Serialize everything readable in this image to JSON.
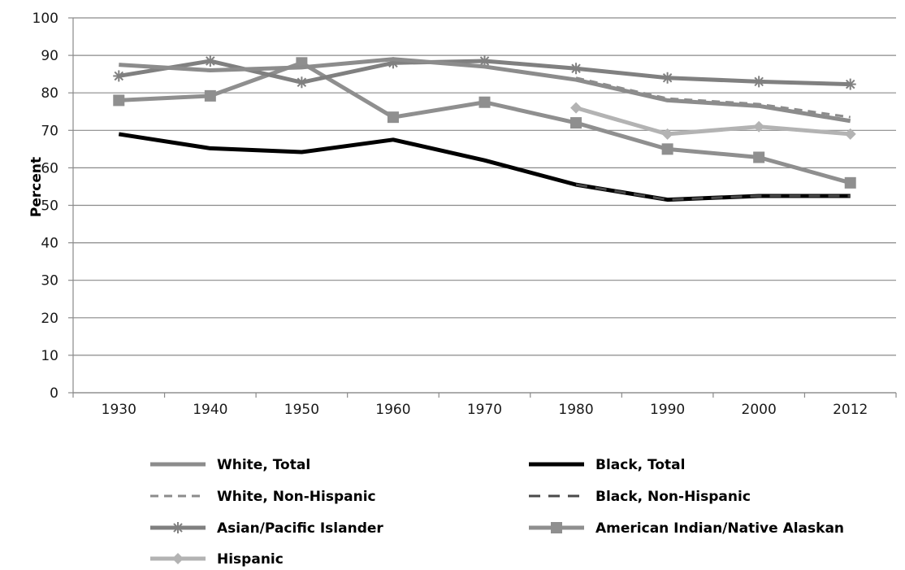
{
  "chart_data": {
    "type": "line",
    "title": "",
    "xlabel": "",
    "ylabel": "Percent",
    "categories": [
      "1930",
      "1940",
      "1950",
      "1960",
      "1970",
      "1980",
      "1990",
      "2000",
      "2012"
    ],
    "ylim": [
      0,
      100
    ],
    "yticks": [
      0,
      10,
      20,
      30,
      40,
      50,
      60,
      70,
      80,
      90,
      100
    ],
    "grid": "horizontal",
    "legend_position": "bottom",
    "series": [
      {
        "name": "White, Total",
        "key": "white_total",
        "color": "#8c8c8c",
        "dash": "solid",
        "marker": "none",
        "values": [
          87.5,
          86,
          86.8,
          89,
          87,
          83.5,
          78,
          76.5,
          72.5
        ]
      },
      {
        "name": "Black, Total",
        "key": "black_total",
        "color": "#000000",
        "dash": "solid",
        "marker": "none",
        "values": [
          69,
          65.2,
          64.2,
          67.5,
          62,
          55.5,
          51.5,
          52.5,
          52.5
        ]
      },
      {
        "name": "White, Non-Hispanic",
        "key": "white_nonhispanic",
        "color": "#8c8c8c",
        "dash": "dashed",
        "marker": "none",
        "values": [
          null,
          null,
          null,
          null,
          null,
          84,
          78.5,
          77,
          73.5
        ]
      },
      {
        "name": "Black, Non-Hispanic",
        "key": "black_nonhispanic",
        "color": "#4a4a4a",
        "dash": "dashed",
        "marker": "none",
        "values": [
          null,
          null,
          null,
          null,
          null,
          55.5,
          51.5,
          52.5,
          52.5
        ]
      },
      {
        "name": "Asian/Pacific Islander",
        "key": "asian_pi",
        "color": "#808080",
        "dash": "solid",
        "marker": "asterisk",
        "values": [
          84.5,
          88.5,
          82.8,
          88,
          88.5,
          86.5,
          84,
          83,
          82.3
        ]
      },
      {
        "name": "American Indian/Native Alaskan",
        "key": "am_indian",
        "color": "#8f8f8f",
        "dash": "solid",
        "marker": "square",
        "values": [
          78,
          79.2,
          88,
          73.5,
          77.5,
          72,
          65,
          62.8,
          56
        ]
      },
      {
        "name": "Hispanic",
        "key": "hispanic",
        "color": "#b3b3b3",
        "dash": "solid",
        "marker": "diamond",
        "values": [
          null,
          null,
          null,
          null,
          null,
          76,
          69,
          71,
          69
        ]
      }
    ]
  }
}
